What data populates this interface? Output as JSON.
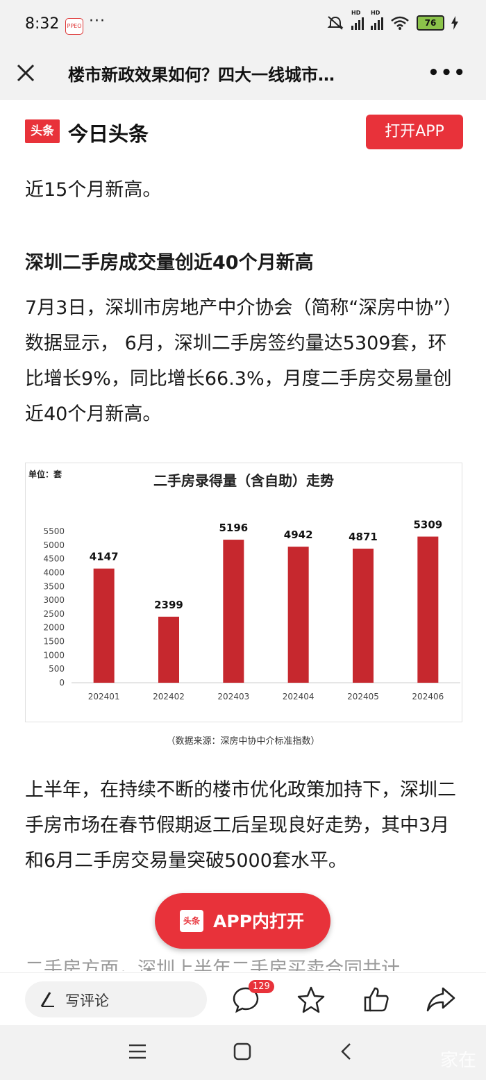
{
  "status": {
    "time": "8:32",
    "app_badge": "PPEO",
    "more": "···",
    "hd1": "HD",
    "hd2": "HD",
    "battery": "76"
  },
  "titlebar": {
    "title": "楼市新政效果如何？四大一线城市…",
    "more": "•••"
  },
  "header": {
    "logo": "头条",
    "brand": "今日头条",
    "open_app": "打开APP"
  },
  "article": {
    "p1": "近15个月新高。",
    "h2": "深圳二手房成交量创近40个月新高",
    "p2": "7月3日，深圳市房地产中介协会（简称“深房中协”）数据显示， 6月，深圳二手房签约量达5309套，环比增长9%，同比增长66.3%，月度二手房交易量创近40个月新高。",
    "p3": "上半年，在持续不断的楼市优化政策加持下，深圳二手房市场在春节假期返工后呈现良好走势，其中3月和6月二手房交易量突破5000套水平。",
    "p4": "二手房方面，深圳上半年二手房买卖合同共计"
  },
  "chart_data": {
    "type": "bar",
    "title": "二手房录得量（含自助）走势",
    "unit_label": "单位：套",
    "categories": [
      "202401",
      "202402",
      "202403",
      "202404",
      "202405",
      "202406"
    ],
    "values": [
      4147,
      2399,
      5196,
      4942,
      4871,
      5309
    ],
    "yticks": [
      0,
      500,
      1000,
      1500,
      2000,
      2500,
      3000,
      3500,
      4000,
      4500,
      5000,
      5500
    ],
    "ylim": [
      0,
      5500
    ],
    "bar_color": "#c6282e",
    "source": "（数据来源：深房中协中介标准指数）"
  },
  "float_button": {
    "logo": "头条",
    "label": "APP内打开"
  },
  "bottombar": {
    "comment_placeholder": "写评论",
    "comment_count": "129"
  },
  "watermark": "家在"
}
